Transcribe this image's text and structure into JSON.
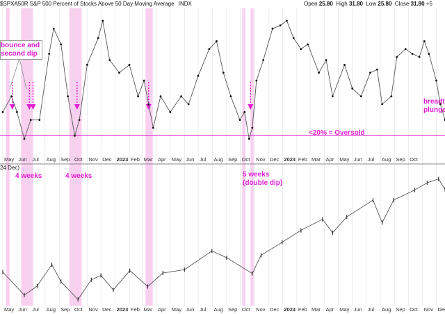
{
  "header": {
    "title": "$SPXA50R S&P 500 Percent of Stocks Above 50 Day Moving Average",
    "exchange": "INDX",
    "open_label": "Open",
    "open": "25.80",
    "high_label": "High",
    "high": "31.80",
    "low_label": "Low",
    "low": "25.80",
    "close_label": "Close",
    "close": "31.80",
    "change": "+5"
  },
  "lower_header": {
    "text": "24 Dec)"
  },
  "annotations": {
    "bounce": [
      "bounce and",
      "second dip"
    ],
    "weeks_jun": "4 weeks",
    "weeks_oct22": "4 weeks",
    "weeks_oct23": [
      "5 weeks",
      "(double dip)"
    ],
    "oversold": "<20% = Oversold",
    "breadth": [
      "breadth",
      "plunge"
    ]
  },
  "colors": {
    "line": "#555555",
    "marker": "#111111",
    "highlight": "#f9c8ef",
    "accent": "#e020d0",
    "grid": "#d9d9d9"
  },
  "chart_data": [
    {
      "type": "line",
      "title": "S&P 500 Percent of Stocks Above 50 Day Moving Average",
      "ylim": [
        10,
        100
      ],
      "reference_line": {
        "y": 20,
        "label": "<20% = Oversold"
      },
      "x": [
        "2022-05-01",
        "2022-05-20",
        "2022-06-01",
        "2022-06-17",
        "2022-07-01",
        "2022-07-20",
        "2022-08-10",
        "2022-08-20",
        "2022-09-05",
        "2022-09-20",
        "2022-10-05",
        "2022-10-15",
        "2022-11-01",
        "2022-11-25",
        "2022-12-05",
        "2022-12-20",
        "2023-01-10",
        "2023-02-01",
        "2023-02-20",
        "2023-03-05",
        "2023-03-15",
        "2023-03-25",
        "2023-04-10",
        "2023-05-01",
        "2023-05-25",
        "2023-06-10",
        "2023-07-01",
        "2023-07-25",
        "2023-08-10",
        "2023-08-25",
        "2023-09-10",
        "2023-09-30",
        "2023-10-10",
        "2023-10-20",
        "2023-10-27",
        "2023-11-05",
        "2023-11-20",
        "2023-12-10",
        "2023-12-27",
        "2024-01-10",
        "2024-01-25",
        "2024-02-10",
        "2024-02-25",
        "2024-03-20",
        "2024-04-05",
        "2024-04-19",
        "2024-05-15",
        "2024-06-01",
        "2024-06-20",
        "2024-07-10",
        "2024-07-25",
        "2024-08-05",
        "2024-08-25",
        "2024-09-06",
        "2024-09-25",
        "2024-10-10",
        "2024-10-25",
        "2024-11-05",
        "2024-11-15",
        "2024-12-01",
        "2024-12-10",
        "2024-12-20"
      ],
      "values": [
        35,
        45,
        35,
        18,
        30,
        30,
        72,
        88,
        78,
        45,
        20,
        30,
        65,
        82,
        93,
        68,
        60,
        65,
        45,
        55,
        40,
        25,
        45,
        35,
        45,
        40,
        58,
        75,
        80,
        60,
        45,
        30,
        35,
        18,
        25,
        55,
        68,
        88,
        90,
        93,
        82,
        75,
        78,
        60,
        68,
        45,
        65,
        50,
        45,
        60,
        62,
        40,
        45,
        70,
        75,
        72,
        70,
        80,
        72,
        55,
        40,
        30
      ]
    },
    {
      "type": "line",
      "title": "S&P 500",
      "ylim": [
        3450,
        6200
      ],
      "x": [
        "2022-05-01",
        "2022-06-17",
        "2022-07-15",
        "2022-08-16",
        "2022-09-05",
        "2022-10-12",
        "2022-11-10",
        "2022-12-01",
        "2022-12-28",
        "2023-02-02",
        "2023-03-13",
        "2023-04-15",
        "2023-06-01",
        "2023-07-31",
        "2023-09-01",
        "2023-10-27",
        "2023-11-15",
        "2023-12-31",
        "2024-02-10",
        "2024-03-28",
        "2024-04-19",
        "2024-05-20",
        "2024-07-16",
        "2024-08-05",
        "2024-08-30",
        "2024-10-15",
        "2024-11-11",
        "2024-12-06",
        "2024-12-20"
      ],
      "values": [
        4150,
        3670,
        3860,
        4305,
        3950,
        3580,
        3990,
        4080,
        3780,
        4180,
        3850,
        4130,
        4200,
        4590,
        4450,
        4120,
        4500,
        4770,
        5020,
        5250,
        4970,
        5300,
        5650,
        5180,
        5650,
        5860,
        6010,
        6090,
        5870
      ]
    }
  ],
  "date_axis": {
    "top": [
      {
        "t": "May",
        "d": "2022-05-01"
      },
      {
        "t": "Jun",
        "d": "2022-06-01"
      },
      {
        "t": "Jul",
        "d": "2022-07-01"
      },
      {
        "t": "Aug",
        "d": "2022-08-01"
      },
      {
        "t": "Sep",
        "d": "2022-09-01"
      },
      {
        "t": "Oct",
        "d": "2022-10-01"
      },
      {
        "t": "Nov",
        "d": "2022-11-01"
      },
      {
        "t": "Dec",
        "d": "2022-12-01"
      },
      {
        "t": "2023",
        "d": "2023-01-01",
        "bold": true
      },
      {
        "t": "Feb",
        "d": "2023-02-01"
      },
      {
        "t": "Mar",
        "d": "2023-03-01"
      },
      {
        "t": "Apr",
        "d": "2023-04-01"
      },
      {
        "t": "May",
        "d": "2023-05-01"
      },
      {
        "t": "Jun",
        "d": "2023-06-01"
      },
      {
        "t": "Jul",
        "d": "2023-07-01"
      },
      {
        "t": "Aug",
        "d": "2023-08-01"
      },
      {
        "t": "Sep",
        "d": "2023-09-01"
      },
      {
        "t": "Oct",
        "d": "2023-10-01"
      },
      {
        "t": "Nov",
        "d": "2023-11-01"
      },
      {
        "t": "Dec",
        "d": "2023-12-01"
      },
      {
        "t": "2024",
        "d": "2024-01-01",
        "bold": true
      },
      {
        "t": "Feb",
        "d": "2024-02-01"
      },
      {
        "t": "Mar",
        "d": "2024-03-01"
      },
      {
        "t": "Apr",
        "d": "2024-04-01"
      },
      {
        "t": "May",
        "d": "2024-05-01"
      },
      {
        "t": "Jun",
        "d": "2024-06-01"
      },
      {
        "t": "Jul",
        "d": "2024-07-01"
      },
      {
        "t": "Aug",
        "d": "2024-08-01"
      },
      {
        "t": "Sep",
        "d": "2024-09-01"
      },
      {
        "t": "Oct",
        "d": "2024-10-01"
      }
    ],
    "bottom": [
      {
        "t": "May",
        "d": "2022-05-01"
      },
      {
        "t": "Jun",
        "d": "2022-06-01"
      },
      {
        "t": "Jul",
        "d": "2022-07-01"
      },
      {
        "t": "Aug",
        "d": "2022-08-01"
      },
      {
        "t": "Sep",
        "d": "2022-09-01"
      },
      {
        "t": "Oct",
        "d": "2022-10-01"
      },
      {
        "t": "Nov",
        "d": "2022-11-01"
      },
      {
        "t": "Dec",
        "d": "2022-12-01"
      },
      {
        "t": "2023",
        "d": "2023-01-01",
        "bold": true
      },
      {
        "t": "Feb",
        "d": "2023-02-01"
      },
      {
        "t": "Mar",
        "d": "2023-03-01"
      },
      {
        "t": "Apr",
        "d": "2023-04-01"
      },
      {
        "t": "May",
        "d": "2023-05-01"
      },
      {
        "t": "Jun",
        "d": "2023-06-01"
      },
      {
        "t": "Jul",
        "d": "2023-07-01"
      },
      {
        "t": "Aug",
        "d": "2023-08-01"
      },
      {
        "t": "Sep",
        "d": "2023-09-01"
      },
      {
        "t": "Oct",
        "d": "2023-10-01"
      },
      {
        "t": "Nov",
        "d": "2023-11-01"
      },
      {
        "t": "Dec",
        "d": "2023-12-01"
      },
      {
        "t": "2024",
        "d": "2024-01-01",
        "bold": true
      },
      {
        "t": "Feb",
        "d": "2024-02-01"
      },
      {
        "t": "Mar",
        "d": "2024-03-01"
      },
      {
        "t": "Apr",
        "d": "2024-04-01"
      },
      {
        "t": "May",
        "d": "2024-05-01"
      },
      {
        "t": "Jun",
        "d": "2024-06-01"
      },
      {
        "t": "Jul",
        "d": "2024-07-01"
      },
      {
        "t": "Aug",
        "d": "2024-08-01"
      },
      {
        "t": "Sep",
        "d": "2024-09-01"
      },
      {
        "t": "Oct",
        "d": "2024-10-01"
      },
      {
        "t": "Nov",
        "d": "2024-11-01"
      },
      {
        "t": "Dec",
        "d": "2024-12-01"
      }
    ]
  },
  "highlight_periods": [
    [
      "2022-05-08",
      "2022-05-16"
    ],
    [
      "2022-06-10",
      "2022-07-06"
    ],
    [
      "2022-09-23",
      "2022-10-20"
    ],
    [
      "2023-03-08",
      "2023-03-24"
    ],
    [
      "2023-10-05",
      "2023-10-12"
    ],
    [
      "2023-10-23",
      "2023-10-30"
    ]
  ],
  "dip_markers": [
    "2022-05-22",
    "2022-06-28",
    "2022-07-06",
    "2022-10-10",
    "2023-03-15",
    "2023-10-23"
  ]
}
